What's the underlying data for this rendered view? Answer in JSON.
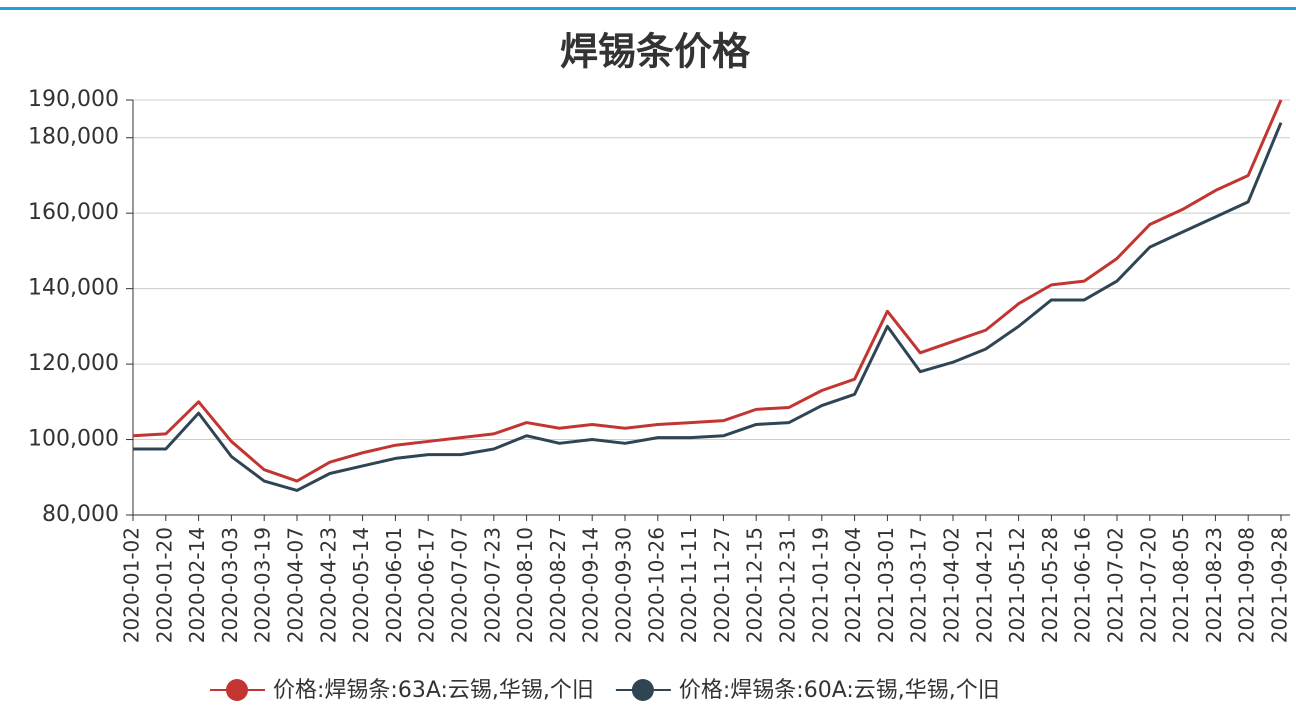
{
  "chart_data": {
    "type": "line",
    "title": "焊锡条价格",
    "categories": [
      "2020-01-02",
      "2020-01-20",
      "2020-02-14",
      "2020-03-03",
      "2020-03-19",
      "2020-04-07",
      "2020-04-23",
      "2020-05-14",
      "2020-06-01",
      "2020-06-17",
      "2020-07-07",
      "2020-07-23",
      "2020-08-10",
      "2020-08-27",
      "2020-09-14",
      "2020-09-30",
      "2020-10-26",
      "2020-11-11",
      "2020-11-27",
      "2020-12-15",
      "2020-12-31",
      "2021-01-19",
      "2021-02-04",
      "2021-03-01",
      "2021-03-17",
      "2021-04-02",
      "2021-04-21",
      "2021-05-12",
      "2021-05-28",
      "2021-06-16",
      "2021-07-02",
      "2021-07-20",
      "2021-08-05",
      "2021-08-23",
      "2021-09-08",
      "2021-09-28"
    ],
    "series": [
      {
        "name": "价格:焊锡条:63A:云锡,华锡,个旧",
        "color": "#c23531",
        "values": [
          101000,
          101500,
          110000,
          99500,
          92000,
          89000,
          94000,
          96500,
          98500,
          99500,
          100500,
          101500,
          104500,
          103000,
          104000,
          103000,
          104000,
          104500,
          105000,
          108000,
          108500,
          113000,
          116000,
          134000,
          123000,
          126000,
          129000,
          136000,
          141000,
          142000,
          148000,
          157000,
          161000,
          166000,
          170000,
          190000
        ]
      },
      {
        "name": "价格:焊锡条:60A:云锡,华锡,个旧",
        "color": "#2f4554",
        "values": [
          97500,
          97500,
          107000,
          95500,
          89000,
          86500,
          91000,
          93000,
          95000,
          96000,
          96000,
          97500,
          101000,
          99000,
          100000,
          99000,
          100500,
          100500,
          101000,
          104000,
          104500,
          109000,
          112000,
          130000,
          118000,
          120500,
          124000,
          130000,
          137000,
          137000,
          142000,
          151000,
          155000,
          159000,
          163000,
          184000
        ]
      }
    ],
    "ylim": [
      80000,
      190000
    ],
    "yticks": [
      {
        "value": 80000,
        "label": "80,000"
      },
      {
        "value": 100000,
        "label": "100,000"
      },
      {
        "value": 120000,
        "label": "120,000"
      },
      {
        "value": 140000,
        "label": "140,000"
      },
      {
        "value": 160000,
        "label": "160,000"
      },
      {
        "value": 180000,
        "label": "180,000"
      },
      {
        "value": 190000,
        "label": "190,000"
      }
    ],
    "grid": true,
    "legend": "bottom"
  }
}
